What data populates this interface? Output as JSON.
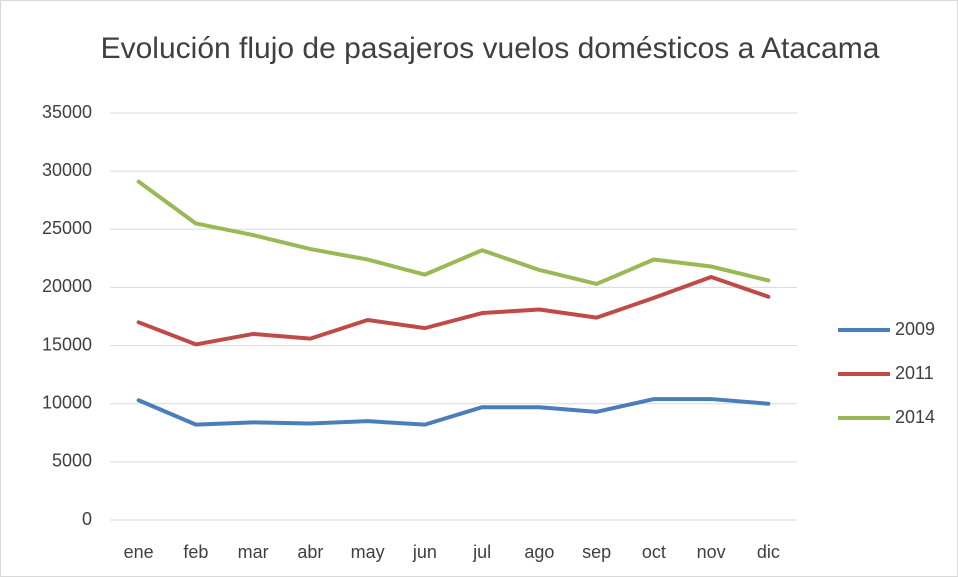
{
  "chart_data": {
    "type": "line",
    "title": "Evolución flujo de pasajeros vuelos domésticos a Atacama",
    "categories": [
      "ene",
      "feb",
      "mar",
      "abr",
      "may",
      "jun",
      "jul",
      "ago",
      "sep",
      "oct",
      "nov",
      "dic"
    ],
    "series": [
      {
        "name": "2009",
        "color": "#4a7ebb",
        "values": [
          10300,
          8200,
          8400,
          8300,
          8500,
          8200,
          9700,
          9700,
          9300,
          10400,
          10400,
          10000
        ]
      },
      {
        "name": "2011",
        "color": "#be4b48",
        "values": [
          17000,
          15100,
          16000,
          15600,
          17200,
          16500,
          17800,
          18100,
          17400,
          19100,
          20900,
          19200
        ]
      },
      {
        "name": "2014",
        "color": "#98b954",
        "values": [
          29100,
          25500,
          24500,
          23300,
          22400,
          21100,
          23200,
          21500,
          20300,
          22400,
          21800,
          20600
        ]
      }
    ],
    "ylim": [
      0,
      35000
    ],
    "yticks": [
      0,
      5000,
      10000,
      15000,
      20000,
      25000,
      30000,
      35000
    ],
    "grid": true,
    "legend": "right"
  }
}
